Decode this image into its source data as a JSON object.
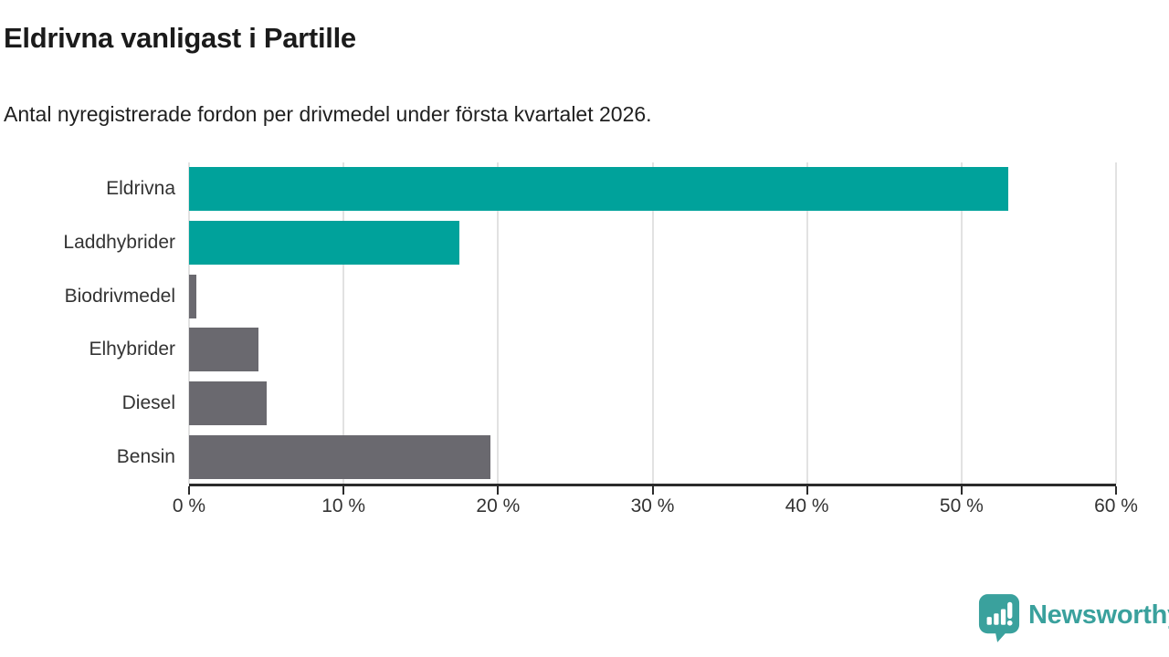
{
  "header": {
    "title": "Eldrivna vanligast i Partille",
    "subtitle": "Antal nyregistrerade fordon per drivmedel under första kvartalet 2026."
  },
  "chart_data": {
    "type": "bar",
    "orientation": "horizontal",
    "title": "Eldrivna vanligast i Partille",
    "subtitle": "Antal nyregistrerade fordon per drivmedel under första kvartalet 2026.",
    "categories": [
      "Eldrivna",
      "Laddhybrider",
      "Biodrivmedel",
      "Elhybrider",
      "Diesel",
      "Bensin"
    ],
    "values": [
      53,
      17.5,
      0.5,
      4.5,
      5,
      19.5
    ],
    "unit": "%",
    "bar_colors": [
      "#00a29b",
      "#00a29b",
      "#6a696f",
      "#6a696f",
      "#6a696f",
      "#6a696f"
    ],
    "xlabel": "",
    "ylabel": "",
    "xlim": [
      0,
      60
    ],
    "x_ticks": [
      0,
      10,
      20,
      30,
      40,
      50,
      60
    ],
    "x_tick_labels": [
      "0 %",
      "10 %",
      "20 %",
      "30 %",
      "40 %",
      "50 %",
      "60 %"
    ],
    "grid": "vertical-gridlines-on",
    "legend": "none"
  },
  "colors": {
    "accent_teal": "#00a29b",
    "neutral_gray": "#6a696f",
    "gridline": "#e2e2e2",
    "axis_line": "#2b2b2b",
    "text_dark": "#1b1b1b",
    "text_label": "#333333",
    "brand_teal": "#3aa19d"
  },
  "footer": {
    "brand": "Newsworthy",
    "logo_icon": "newsworthy-speech-bubble-barchart-icon"
  }
}
